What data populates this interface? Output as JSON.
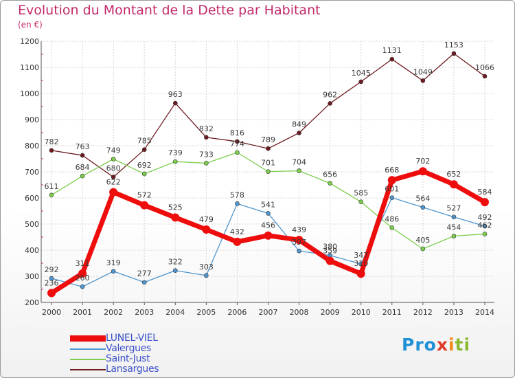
{
  "title": "Evolution du Montant de la Dette par Habitant",
  "unit": "(en €)",
  "logo": {
    "text": "Proxiti",
    "parts": [
      "Pro",
      "x",
      "i",
      "ti"
    ]
  },
  "colors": {
    "title": "#c2296a",
    "legend_text": "#3a50c8"
  },
  "chart_data": {
    "type": "line",
    "title": "Evolution du Montant de la Dette par Habitant",
    "subtitle": "(en €)",
    "xlabel": "",
    "ylabel": "",
    "ylim": [
      200,
      1200
    ],
    "yticks": [
      200,
      300,
      400,
      500,
      600,
      700,
      800,
      900,
      1000,
      1100,
      1200
    ],
    "categories": [
      "2000",
      "2001",
      "2002",
      "2003",
      "2004",
      "2005",
      "2006",
      "2007",
      "2008",
      "2009",
      "2010",
      "2011",
      "2012",
      "2013",
      "2014"
    ],
    "grid": true,
    "legend_position": "bottom-left",
    "series": [
      {
        "name": "Lansargues",
        "color": "#6e1a1f",
        "width": 1.3,
        "marker_radius": 3,
        "values": [
          782,
          763,
          680,
          785,
          963,
          832,
          816,
          789,
          849,
          962,
          1045,
          1131,
          1049,
          1153,
          1066
        ]
      },
      {
        "name": "Saint-Just",
        "color": "#7dce4c",
        "width": 1.3,
        "marker_radius": 3,
        "values": [
          611,
          684,
          749,
          692,
          739,
          733,
          774,
          701,
          704,
          656,
          585,
          486,
          405,
          454,
          462
        ]
      },
      {
        "name": "Valergues",
        "color": "#4f96cf",
        "width": 1.3,
        "marker_radius": 3,
        "values": [
          292,
          260,
          319,
          277,
          322,
          303,
          578,
          541,
          397,
          380,
          347,
          601,
          564,
          527,
          492
        ]
      },
      {
        "name": "LUNEL-VIEL",
        "color": "#ee0d0d",
        "width": 7,
        "marker_radius": 6,
        "values": [
          236,
          311,
          622,
          572,
          525,
          479,
          432,
          456,
          439,
          359,
          310,
          668,
          702,
          652,
          584
        ]
      }
    ]
  }
}
